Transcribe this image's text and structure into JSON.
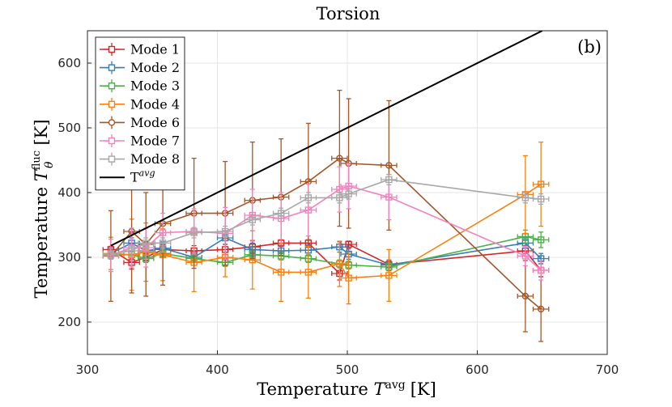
{
  "chart_data": {
    "type": "line",
    "title": "Torsion",
    "panel_label": "(b)",
    "xlabel_prefix": "Temperature ",
    "xlabel_symbol": "T",
    "xlabel_sup": "avg",
    "xlabel_unit": "[K]",
    "ylabel_prefix": "Temperature ",
    "ylabel_symbol": "T",
    "ylabel_sub": "θ",
    "ylabel_sup": "fluc",
    "ylabel_unit": "[K]",
    "xlim": [
      300,
      700
    ],
    "ylim": [
      150,
      650
    ],
    "xticks": [
      300,
      400,
      500,
      600,
      700
    ],
    "yticks": [
      200,
      300,
      400,
      500,
      600
    ],
    "grid": true,
    "legend_position": "top-left",
    "x": [
      318,
      334,
      345,
      358,
      382,
      406,
      427,
      449,
      470,
      494,
      501,
      532,
      637,
      649
    ],
    "series": [
      {
        "name": "Mode 1",
        "color": "#d62728",
        "marker": "square",
        "values": [
          312,
          292,
          300,
          312,
          310,
          312,
          316,
          322,
          322,
          275,
          320,
          289,
          310,
          280
        ],
        "yerr": [
          5,
          10,
          6,
          8,
          8,
          8,
          10,
          5,
          5,
          10,
          5,
          5,
          8,
          10
        ],
        "xerr": 6
      },
      {
        "name": "Mode 2",
        "color": "#377eb8",
        "marker": "square",
        "values": [
          306,
          322,
          310,
          314,
          300,
          330,
          312,
          310,
          311,
          316,
          305,
          288,
          322,
          298
        ],
        "yerr": [
          8,
          8,
          8,
          10,
          8,
          10,
          10,
          8,
          8,
          8,
          8,
          8,
          8,
          8
        ],
        "xerr": 6
      },
      {
        "name": "Mode 3",
        "color": "#4daf4a",
        "marker": "square",
        "values": [
          304,
          304,
          298,
          306,
          298,
          292,
          304,
          302,
          298,
          290,
          288,
          285,
          332,
          327
        ],
        "yerr": [
          6,
          6,
          6,
          6,
          6,
          6,
          6,
          6,
          6,
          6,
          6,
          6,
          10,
          12
        ],
        "xerr": 6
      },
      {
        "name": "Mode 4",
        "color": "#ff7f0e",
        "marker": "square",
        "values": [
          306,
          304,
          308,
          304,
          292,
          300,
          296,
          277,
          277,
          290,
          268,
          272,
          397,
          413
        ],
        "yerr": [
          25,
          55,
          45,
          40,
          45,
          30,
          45,
          45,
          40,
          35,
          40,
          40,
          60,
          65
        ],
        "xerr": 6
      },
      {
        "name": "Mode 6",
        "color": "#a65628",
        "marker": "circle",
        "values": [
          302,
          340,
          320,
          352,
          368,
          368,
          388,
          393,
          417,
          453,
          445,
          442,
          240,
          220
        ],
        "yerr": [
          70,
          95,
          80,
          95,
          85,
          80,
          90,
          90,
          90,
          105,
          100,
          100,
          55,
          50
        ],
        "xerr": 6
      },
      {
        "name": "Mode 7",
        "color": "#f781bf",
        "marker": "square",
        "values": [
          303,
          315,
          315,
          338,
          340,
          337,
          365,
          360,
          373,
          405,
          410,
          393,
          302,
          280
        ],
        "yerr": [
          25,
          30,
          30,
          30,
          35,
          40,
          40,
          40,
          40,
          35,
          35,
          35,
          15,
          15
        ],
        "xerr": 6
      },
      {
        "name": "Mode 8",
        "color": "#a8a8a8",
        "marker": "square",
        "values": [
          305,
          310,
          322,
          322,
          338,
          340,
          358,
          368,
          392,
          392,
          398,
          420,
          392,
          390
        ],
        "yerr": [
          8,
          8,
          8,
          8,
          8,
          8,
          8,
          8,
          8,
          8,
          8,
          8,
          8,
          8
        ],
        "xerr": 6
      },
      {
        "name": "T",
        "legend_sup": "avg",
        "color": "#000000",
        "marker": "none",
        "line_x": [
          318,
          650
        ],
        "line_y": [
          318,
          650
        ]
      }
    ]
  }
}
